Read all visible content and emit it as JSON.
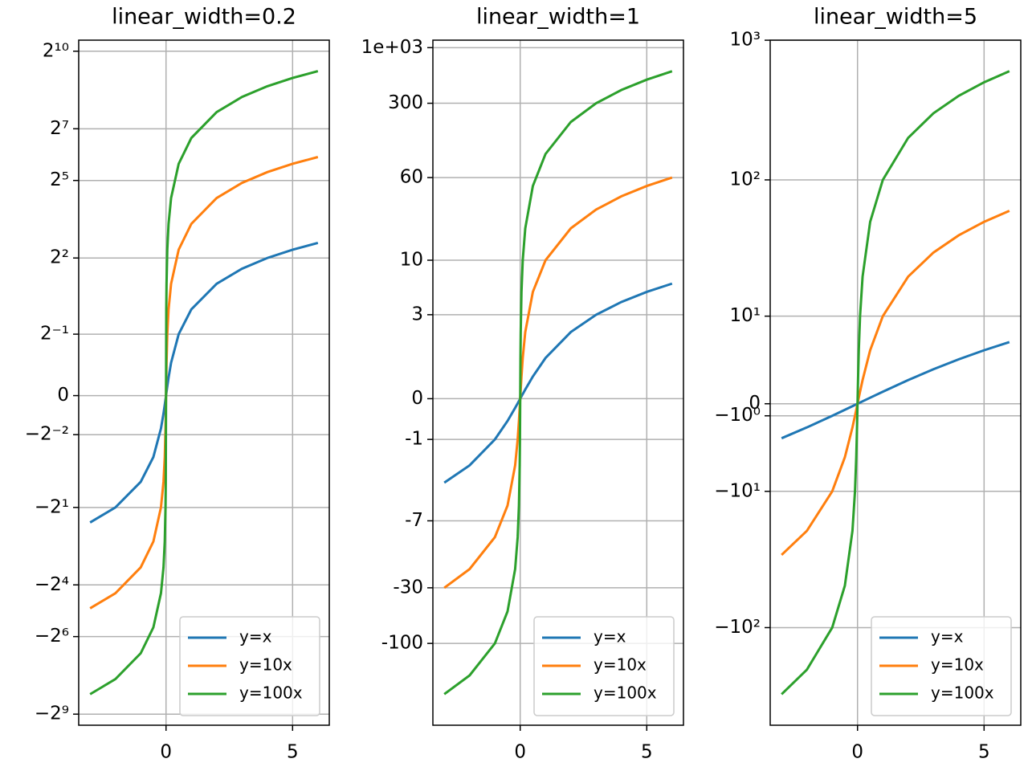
{
  "chart_data": [
    {
      "type": "line",
      "title": "linear_width=0.2",
      "yscale": "asinh",
      "linear_width": 0.2,
      "grid": true,
      "legend": "lower right",
      "x": [
        -3,
        -2,
        -1,
        -0.5,
        -0.2,
        -0.1,
        -0.05,
        -0.02,
        -0.01,
        0,
        0.01,
        0.02,
        0.05,
        0.1,
        0.2,
        0.5,
        1,
        2,
        3,
        4,
        5,
        6
      ],
      "series": [
        {
          "name": "y=x",
          "color": "#1f77b4",
          "values": [
            -3,
            -2,
            -1,
            -0.5,
            -0.2,
            -0.1,
            -0.05,
            -0.02,
            -0.01,
            0,
            0.01,
            0.02,
            0.05,
            0.1,
            0.2,
            0.5,
            1,
            2,
            3,
            4,
            5,
            6
          ]
        },
        {
          "name": "y=10x",
          "color": "#ff7f0e",
          "values": [
            -30,
            -20,
            -10,
            -5,
            -2,
            -1,
            -0.5,
            -0.2,
            -0.1,
            0,
            0.1,
            0.2,
            0.5,
            1,
            2,
            5,
            10,
            20,
            30,
            40,
            50,
            60
          ]
        },
        {
          "name": "y=100x",
          "color": "#2ca02c",
          "values": [
            -300,
            -200,
            -100,
            -50,
            -20,
            -10,
            -5,
            -2,
            -1,
            0,
            1,
            2,
            5,
            10,
            20,
            50,
            100,
            200,
            300,
            400,
            500,
            600
          ]
        }
      ],
      "xlim": [
        -3.45,
        6.45
      ],
      "xticks": [
        0,
        5
      ],
      "ylim": [
        -689,
        1377
      ],
      "yticks": [
        {
          "value": 1024,
          "label": "2¹⁰"
        },
        {
          "value": 128,
          "label": "2⁷"
        },
        {
          "value": 32,
          "label": "2⁵"
        },
        {
          "value": 4,
          "label": "2²"
        },
        {
          "value": 0.5,
          "label": "2⁻¹"
        },
        0,
        {
          "value": -0.25,
          "label": "−2⁻²"
        },
        {
          "value": -2,
          "label": "−2¹"
        },
        {
          "value": -16,
          "label": "−2⁴"
        },
        {
          "value": -64,
          "label": "−2⁶"
        },
        {
          "value": -512,
          "label": "−2⁹"
        }
      ]
    },
    {
      "type": "line",
      "title": "linear_width=1",
      "yscale": "asinh",
      "linear_width": 1,
      "grid": true,
      "legend": "lower right",
      "x": [
        -3,
        -2,
        -1,
        -0.5,
        -0.2,
        -0.1,
        -0.05,
        -0.02,
        -0.01,
        0,
        0.01,
        0.02,
        0.05,
        0.1,
        0.2,
        0.5,
        1,
        2,
        3,
        4,
        5,
        6
      ],
      "series": [
        {
          "name": "y=x",
          "color": "#1f77b4",
          "values": [
            -3,
            -2,
            -1,
            -0.5,
            -0.2,
            -0.1,
            -0.05,
            -0.02,
            -0.01,
            0,
            0.01,
            0.02,
            0.05,
            0.1,
            0.2,
            0.5,
            1,
            2,
            3,
            4,
            5,
            6
          ]
        },
        {
          "name": "y=10x",
          "color": "#ff7f0e",
          "values": [
            -30,
            -20,
            -10,
            -5,
            -2,
            -1,
            -0.5,
            -0.2,
            -0.1,
            0,
            0.1,
            0.2,
            0.5,
            1,
            2,
            5,
            10,
            20,
            30,
            40,
            50,
            60
          ]
        },
        {
          "name": "y=100x",
          "color": "#2ca02c",
          "values": [
            -300,
            -200,
            -100,
            -50,
            -20,
            -10,
            -5,
            -2,
            -1,
            0,
            1,
            2,
            5,
            10,
            20,
            50,
            100,
            200,
            300,
            400,
            500,
            600
          ]
        }
      ],
      "xlim": [
        -3.45,
        6.45
      ],
      "xticks": [
        0,
        5
      ],
      "ylim": [
        -588,
        1176
      ],
      "yticks": [
        {
          "value": 1000,
          "label": "1e+03"
        },
        300,
        60,
        10,
        3,
        0,
        -1,
        -7,
        -30,
        -100
      ]
    },
    {
      "type": "line",
      "title": "linear_width=5",
      "yscale": "asinh",
      "linear_width": 5,
      "grid": true,
      "legend": "lower right",
      "x": [
        -3,
        -2,
        -1,
        -0.5,
        -0.2,
        -0.1,
        -0.05,
        -0.02,
        -0.01,
        0,
        0.01,
        0.02,
        0.05,
        0.1,
        0.2,
        0.5,
        1,
        2,
        3,
        4,
        5,
        6
      ],
      "series": [
        {
          "name": "y=x",
          "color": "#1f77b4",
          "values": [
            -3,
            -2,
            -1,
            -0.5,
            -0.2,
            -0.1,
            -0.05,
            -0.02,
            -0.01,
            0,
            0.01,
            0.02,
            0.05,
            0.1,
            0.2,
            0.5,
            1,
            2,
            3,
            4,
            5,
            6
          ]
        },
        {
          "name": "y=10x",
          "color": "#ff7f0e",
          "values": [
            -30,
            -20,
            -10,
            -5,
            -2,
            -1,
            -0.5,
            -0.2,
            -0.1,
            0,
            0.1,
            0.2,
            0.5,
            1,
            2,
            5,
            10,
            20,
            30,
            40,
            50,
            60
          ]
        },
        {
          "name": "y=100x",
          "color": "#2ca02c",
          "values": [
            -300,
            -200,
            -100,
            -50,
            -20,
            -10,
            -5,
            -2,
            -1,
            0,
            1,
            2,
            5,
            10,
            20,
            50,
            100,
            200,
            300,
            400,
            500,
            600
          ]
        }
      ],
      "xlim": [
        -3.45,
        6.45
      ],
      "xticks": [
        0,
        5
      ],
      "ylim": [
        -500,
        1001
      ],
      "yticks": [
        {
          "value": 1000,
          "label": "10³"
        },
        {
          "value": 100,
          "label": "10²"
        },
        {
          "value": 10,
          "label": "10¹"
        },
        0,
        {
          "value": -1,
          "label": "−10⁰"
        },
        {
          "value": -10,
          "label": "−10¹"
        },
        {
          "value": -100,
          "label": "−10²"
        }
      ]
    }
  ]
}
